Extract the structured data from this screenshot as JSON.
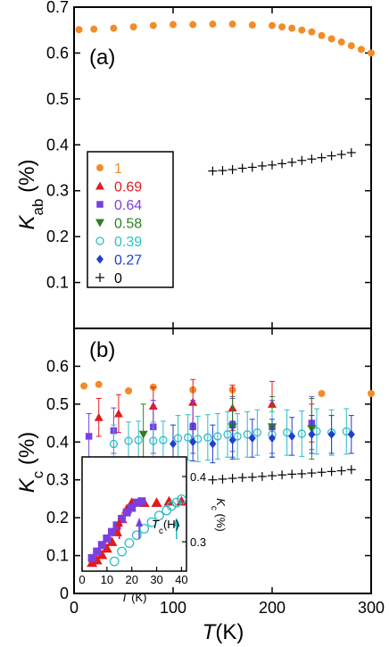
{
  "chart_data": [
    {
      "type": "scatter",
      "panel_label": "(a)",
      "xlabel": "",
      "ylabel": "K_ab (%)",
      "ylabel_main": "K",
      "ylabel_sub": "ab",
      "ylabel_unit": "(%)",
      "xlim": [
        0,
        300
      ],
      "ylim": [
        0,
        0.7
      ],
      "yticks": [
        "0.1",
        "0.2",
        "0.3",
        "0.4",
        "0.5",
        "0.6",
        "0.7"
      ],
      "legend_placement": "bottom-left",
      "legend": [
        {
          "label": "1",
          "color": "#f28c28",
          "marker": "circle"
        },
        {
          "label": "0.69",
          "color": "#e31a1c",
          "marker": "triangle-up"
        },
        {
          "label": "0.64",
          "color": "#7a3fe0",
          "marker": "square"
        },
        {
          "label": "0.58",
          "color": "#2e7d1f",
          "marker": "triangle-down"
        },
        {
          "label": "0.39",
          "color": "#2bbdc9",
          "marker": "open-circle"
        },
        {
          "label": "0.27",
          "color": "#1f3fd0",
          "marker": "diamond"
        },
        {
          "label": "0",
          "color": "#000000",
          "marker": "plus"
        }
      ],
      "series": [
        {
          "name": "1",
          "marker": "circle",
          "color": "#f28c28",
          "x": [
            5,
            20,
            40,
            60,
            80,
            100,
            120,
            140,
            160,
            180,
            200,
            210,
            220,
            230,
            240,
            250,
            260,
            270,
            280,
            290,
            300
          ],
          "y": [
            0.651,
            0.652,
            0.654,
            0.657,
            0.66,
            0.662,
            0.662,
            0.663,
            0.663,
            0.661,
            0.66,
            0.657,
            0.654,
            0.65,
            0.646,
            0.638,
            0.631,
            0.624,
            0.616,
            0.608,
            0.6
          ]
        },
        {
          "name": "0",
          "marker": "plus",
          "color": "#000000",
          "x": [
            140,
            150,
            160,
            170,
            180,
            190,
            200,
            210,
            220,
            230,
            240,
            250,
            260,
            270,
            280
          ],
          "y": [
            0.343,
            0.344,
            0.346,
            0.349,
            0.351,
            0.354,
            0.356,
            0.359,
            0.362,
            0.366,
            0.369,
            0.372,
            0.376,
            0.379,
            0.383
          ]
        }
      ]
    },
    {
      "type": "scatter",
      "panel_label": "(b)",
      "xlabel": "T(K)",
      "xlabel_main": "T",
      "xlabel_unit": "(K)",
      "ylabel": "K_c (%)",
      "ylabel_main": "K",
      "ylabel_sub": "c",
      "ylabel_unit": "(%)",
      "xlim": [
        0,
        300
      ],
      "ylim": [
        0,
        0.7
      ],
      "xticks": [
        "0",
        "100",
        "200",
        "300"
      ],
      "yticks": [
        "0",
        "0.1",
        "0.2",
        "0.3",
        "0.4",
        "0.5",
        "0.6"
      ],
      "series": [
        {
          "name": "1",
          "marker": "circle",
          "color": "#f28c28",
          "x": [
            10,
            25,
            55,
            80,
            120,
            160,
            250,
            300
          ],
          "y": [
            0.548,
            0.552,
            0.535,
            0.545,
            0.538,
            0.538,
            0.528,
            0.528
          ]
        },
        {
          "name": "0.69",
          "marker": "triangle-up",
          "color": "#e31a1c",
          "x": [
            25,
            45,
            80,
            120,
            160,
            200,
            240
          ],
          "y": [
            0.465,
            0.475,
            0.495,
            0.505,
            0.49,
            0.5,
            0.45
          ],
          "err": [
            0.05,
            0.05,
            0.05,
            0.06,
            0.06,
            0.06,
            0.05
          ]
        },
        {
          "name": "0.64",
          "marker": "square",
          "color": "#7a3fe0",
          "x": [
            15,
            40,
            80,
            120,
            160,
            200,
            240
          ],
          "y": [
            0.415,
            0.43,
            0.44,
            0.44,
            0.445,
            0.44,
            0.45
          ],
          "err": [
            0.06,
            0.06,
            0.07,
            0.07,
            0.07,
            0.07,
            0.07
          ]
        },
        {
          "name": "0.58",
          "marker": "triangle-down",
          "color": "#2e7d1f",
          "x": [
            70,
            160,
            200,
            240
          ],
          "y": [
            0.42,
            0.44,
            0.44,
            0.435
          ],
          "err": [
            0.08,
            0.08,
            0.08,
            0.08
          ]
        },
        {
          "name": "0.39",
          "marker": "open-circle",
          "color": "#2bbdc9",
          "x": [
            40,
            55,
            65,
            80,
            90,
            105,
            115,
            125,
            135,
            145,
            155,
            165,
            175,
            185,
            200,
            215,
            230,
            245,
            260,
            275
          ],
          "y": [
            0.395,
            0.403,
            0.405,
            0.403,
            0.405,
            0.41,
            0.412,
            0.408,
            0.412,
            0.415,
            0.42,
            0.415,
            0.42,
            0.425,
            0.42,
            0.425,
            0.422,
            0.428,
            0.425,
            0.428
          ],
          "err": [
            0.05,
            0.05,
            0.05,
            0.05,
            0.05,
            0.06,
            0.06,
            0.06,
            0.06,
            0.06,
            0.06,
            0.06,
            0.06,
            0.06,
            0.06,
            0.06,
            0.06,
            0.06,
            0.06,
            0.06
          ]
        },
        {
          "name": "0.27",
          "marker": "diamond",
          "color": "#1f3fd0",
          "x": [
            100,
            120,
            140,
            160,
            180,
            200,
            220,
            240,
            260,
            280
          ],
          "y": [
            0.395,
            0.4,
            0.395,
            0.405,
            0.41,
            0.41,
            0.415,
            0.42,
            0.42,
            0.42
          ],
          "err": [
            0.05,
            0.05,
            0.05,
            0.05,
            0.05,
            0.05,
            0.05,
            0.05,
            0.05,
            0.05
          ]
        },
        {
          "name": "0",
          "marker": "plus",
          "color": "#000000",
          "x": [
            140,
            150,
            160,
            170,
            180,
            190,
            200,
            210,
            220,
            230,
            240,
            250,
            260,
            270,
            280
          ],
          "y": [
            0.3,
            0.302,
            0.304,
            0.306,
            0.307,
            0.309,
            0.311,
            0.313,
            0.315,
            0.316,
            0.318,
            0.32,
            0.322,
            0.324,
            0.327
          ]
        }
      ],
      "inset": {
        "type": "scatter",
        "xlabel": "T (K)",
        "xlabel_main": "T",
        "xlabel_unit": "(K)",
        "ylabel": "K_c (%)",
        "ylabel_main": "K",
        "ylabel_sub": "c",
        "ylabel_unit": "(%)",
        "xlim": [
          0,
          42
        ],
        "ylim": [
          0.255,
          0.43
        ],
        "xticks": [
          "0",
          "10",
          "20",
          "30",
          "40"
        ],
        "yticks": [
          "0.3",
          "0.4"
        ],
        "annotation": "T_c(H)",
        "annotation_main": "T",
        "annotation_sub": "c",
        "annotation_tail": "(H)",
        "arrows": [
          {
            "x": 15,
            "color": "#e31a1c"
          },
          {
            "x": 23,
            "color": "#7a3fe0"
          },
          {
            "x": 38,
            "color": "#2bbdc9"
          }
        ],
        "series": [
          {
            "name": "0.69",
            "marker": "triangle-up",
            "color": "#e31a1c",
            "x": [
              4,
              6,
              8,
              10,
              12,
              14,
              16,
              18,
              20,
              25,
              30,
              35,
              40
            ],
            "y": [
              0.268,
              0.272,
              0.28,
              0.29,
              0.3,
              0.315,
              0.335,
              0.35,
              0.36,
              0.36,
              0.36,
              0.362,
              0.362
            ]
          },
          {
            "name": "0.64",
            "marker": "square",
            "color": "#7a3fe0",
            "x": [
              4,
              6,
              8,
              10,
              12,
              14,
              16,
              18,
              20,
              22,
              24
            ],
            "y": [
              0.275,
              0.285,
              0.295,
              0.305,
              0.315,
              0.325,
              0.335,
              0.345,
              0.352,
              0.36,
              0.362
            ]
          },
          {
            "name": "0.39",
            "marker": "open-circle",
            "color": "#2bbdc9",
            "x": [
              13,
              16,
              19,
              22,
              25,
              28,
              31,
              34,
              36,
              38,
              40,
              42
            ],
            "y": [
              0.27,
              0.285,
              0.298,
              0.31,
              0.32,
              0.33,
              0.34,
              0.348,
              0.355,
              0.36,
              0.365,
              0.37
            ]
          }
        ]
      }
    }
  ]
}
